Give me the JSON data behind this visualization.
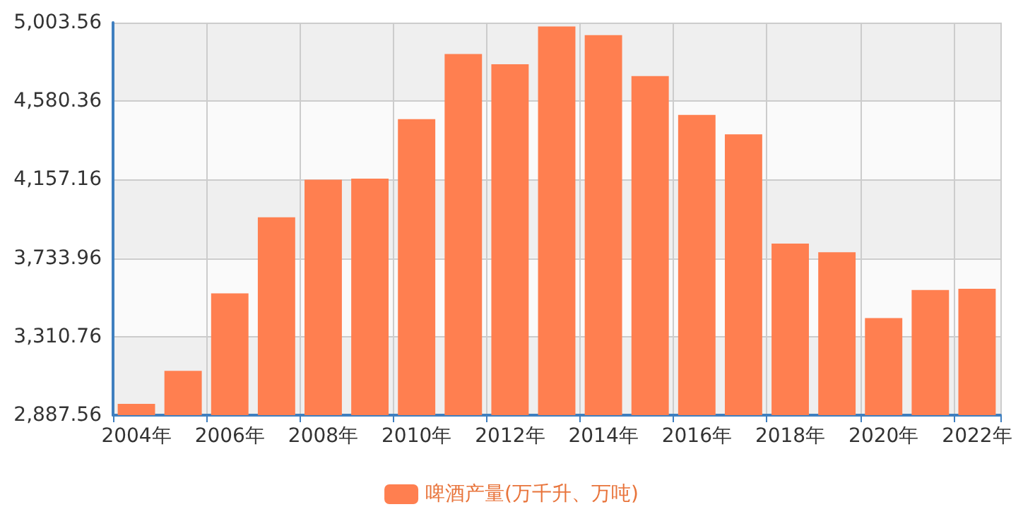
{
  "chart_data": {
    "type": "bar",
    "categories": [
      "2004年",
      null,
      "2006年",
      null,
      "2008年",
      null,
      "2010年",
      null,
      "2012年",
      null,
      "2014年",
      null,
      "2016年",
      null,
      "2018年",
      null,
      "2020年",
      null,
      "2022年"
    ],
    "series": [
      {
        "name": "啤酒产量(万千升、万吨)",
        "color": "#ff7f50",
        "values": [
          2948.6,
          3126.1,
          3543.6,
          3954.1,
          4156.9,
          4162.2,
          4483.0,
          4834.5,
          4778.6,
          4982.8,
          4936.0,
          4715.7,
          4506.4,
          4401.5,
          3812.2,
          3765.3,
          3411.1,
          3562.4,
          3568.7
        ]
      }
    ],
    "ylim": [
      2887.56,
      5003.56
    ],
    "yticks": [
      {
        "value": 2887.56,
        "label": "2,887.56"
      },
      {
        "value": 3310.76,
        "label": "3,310.76"
      },
      {
        "value": 3733.96,
        "label": "3,733.96"
      },
      {
        "value": 4157.16,
        "label": "4,157.16"
      },
      {
        "value": 4580.36,
        "label": "4,580.36"
      },
      {
        "value": 5003.56,
        "label": "5,003.56"
      }
    ],
    "grid": true,
    "legend": "bottom"
  }
}
